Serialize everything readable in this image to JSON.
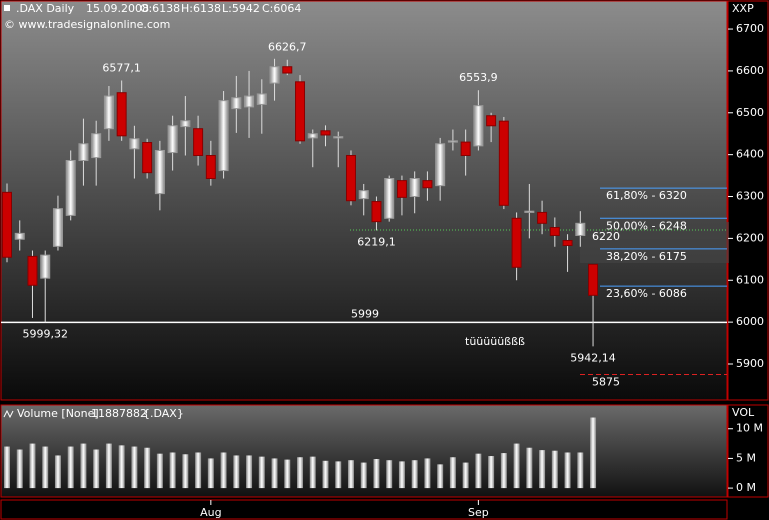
{
  "chart_data": [
    {
      "type": "candlestick",
      "header": [
        ".DAX Daily",
        "15.09.2008",
        "O:6138",
        "H:6138",
        "L:5942",
        "C:6064"
      ],
      "source": "© www.tradesignalonline.com",
      "axis_title": "XXP",
      "note": "tüüüüüßßß",
      "categories": [
        null,
        null,
        null,
        null,
        null,
        null,
        null,
        null,
        null,
        null,
        null,
        null,
        null,
        null,
        null,
        null,
        "Aug",
        null,
        null,
        null,
        null,
        null,
        null,
        null,
        null,
        null,
        null,
        null,
        null,
        null,
        null,
        null,
        null,
        null,
        null,
        null,
        null,
        "Sep",
        null,
        null,
        null,
        null,
        null,
        null,
        null,
        null,
        null
      ],
      "open": [
        6310,
        6198,
        6157,
        6105,
        6181,
        6255,
        6386,
        6393,
        6462,
        6548,
        6414,
        6429,
        6307,
        6405,
        6467,
        6462,
        6398,
        6362,
        6510,
        6514,
        6520,
        6571,
        6610,
        6574,
        6440,
        6457,
        6440,
        6398,
        6295,
        6288,
        6248,
        6338,
        6300,
        6338,
        6326,
        6430,
        6430,
        6421,
        6493,
        6480,
        6248,
        6262,
        6262,
        6226,
        6195,
        6207,
        6138
      ],
      "high": [
        6331,
        6243,
        6171,
        6171,
        6302,
        6410,
        6486,
        6481,
        6564,
        6577.1,
        6469,
        6438,
        6433,
        6493,
        6540,
        6493,
        6433,
        6552,
        6588,
        6600,
        6580,
        6629,
        6626.7,
        6590,
        6460,
        6470,
        6455,
        6410,
        6330,
        6300,
        6350,
        6350,
        6360,
        6360,
        6440,
        6460,
        6460,
        6553.9,
        6500,
        6490,
        6262,
        6330,
        6290,
        6250,
        6210,
        6265,
        6138
      ],
      "low": [
        6143,
        6171,
        6010,
        5999.32,
        6171,
        6243,
        6326,
        6326,
        6433,
        6433,
        6343,
        6343,
        6267,
        6362,
        6398,
        6374,
        6326,
        6343,
        6452,
        6440,
        6450,
        6529,
        6590,
        6426,
        6370,
        6420,
        6370,
        6279,
        6255,
        6219.1,
        6240,
        6255,
        6260,
        6290,
        6290,
        6410,
        6350,
        6410,
        6430,
        6270,
        6100,
        6200,
        6210,
        6180,
        6120,
        6180,
        5942.14
      ],
      "close": [
        6155,
        6212,
        6088,
        6160,
        6271,
        6386,
        6426,
        6450,
        6540,
        6445,
        6438,
        6357,
        6410,
        6469,
        6481,
        6398,
        6343,
        6529,
        6536,
        6540,
        6545,
        6610,
        6595,
        6433,
        6450,
        6447,
        6443,
        6290,
        6314,
        6240,
        6343,
        6298,
        6343,
        6321,
        6426,
        6433,
        6398,
        6517,
        6469,
        6279,
        6131,
        6265,
        6236,
        6207,
        6183,
        6236,
        6064
      ],
      "up_color": "#e8e8e8",
      "down_color": "#cc0000",
      "ylim": [
        5814,
        6767
      ],
      "yticks": [
        5900,
        6000,
        6100,
        6200,
        6300,
        6400,
        6500,
        6600,
        6700
      ],
      "annotations": [
        {
          "value": 6577.1,
          "label": "6577,1",
          "color": "#55cc55"
        },
        {
          "value": 6626.7,
          "label": "6626,7",
          "color": "#55cc55"
        },
        {
          "value": 6553.9,
          "label": "6553,9",
          "color": "#55cc55"
        },
        {
          "value": 6219.1,
          "label": "6219,1",
          "color": "#dd2222"
        },
        {
          "value": 5999.32,
          "label": "5999,32",
          "color": "#dd2222"
        },
        {
          "value": 5942.14,
          "label": "5942,14",
          "color": "#bbbbbb"
        }
      ],
      "fib_levels": [
        {
          "value": 6320,
          "label": "61,80% - 6320"
        },
        {
          "value": 6248,
          "label": "50,00% - 6248"
        },
        {
          "value": 6175,
          "label": "38,20% - 6175"
        },
        {
          "value": 6086,
          "label": "23,60% - 6086"
        }
      ],
      "fib_color": "#4aa0ff",
      "lines": [
        {
          "value": 6220,
          "label": "6220",
          "color": "#55cc55",
          "style": "dotted"
        },
        {
          "value": 5999.32,
          "label": "5999",
          "color": "#ffffff",
          "style": "solid"
        },
        {
          "value": 5875,
          "label": "5875",
          "color": "#dd2222",
          "style": "dashed"
        }
      ]
    },
    {
      "type": "bar",
      "title": "Volume [None]",
      "symbol": "{.DAX}",
      "axis_title": "VOL",
      "values": [
        7000000,
        6500000,
        7500000,
        7000000,
        5500000,
        7000000,
        7500000,
        6500000,
        7500000,
        7200000,
        7000000,
        6800000,
        5800000,
        6000000,
        5700000,
        6000000,
        5000000,
        6000000,
        5500000,
        5500000,
        5300000,
        5000000,
        4800000,
        5200000,
        5300000,
        4600000,
        4500000,
        4700000,
        4300000,
        4900000,
        4700000,
        4500000,
        4700000,
        5000000,
        4000000,
        5200000,
        4300000,
        5800000,
        5400000,
        5900000,
        7500000,
        6800000,
        6400000,
        6300000,
        6000000,
        6000000,
        11887882
      ],
      "color": "#bbbbbb",
      "ylim": [
        -1500000,
        14000000
      ],
      "yticks": [
        {
          "value": 0,
          "label": "0 M"
        },
        {
          "value": 5000000,
          "label": "5 M"
        },
        {
          "value": 10000000,
          "label": "10 M"
        }
      ]
    }
  ]
}
